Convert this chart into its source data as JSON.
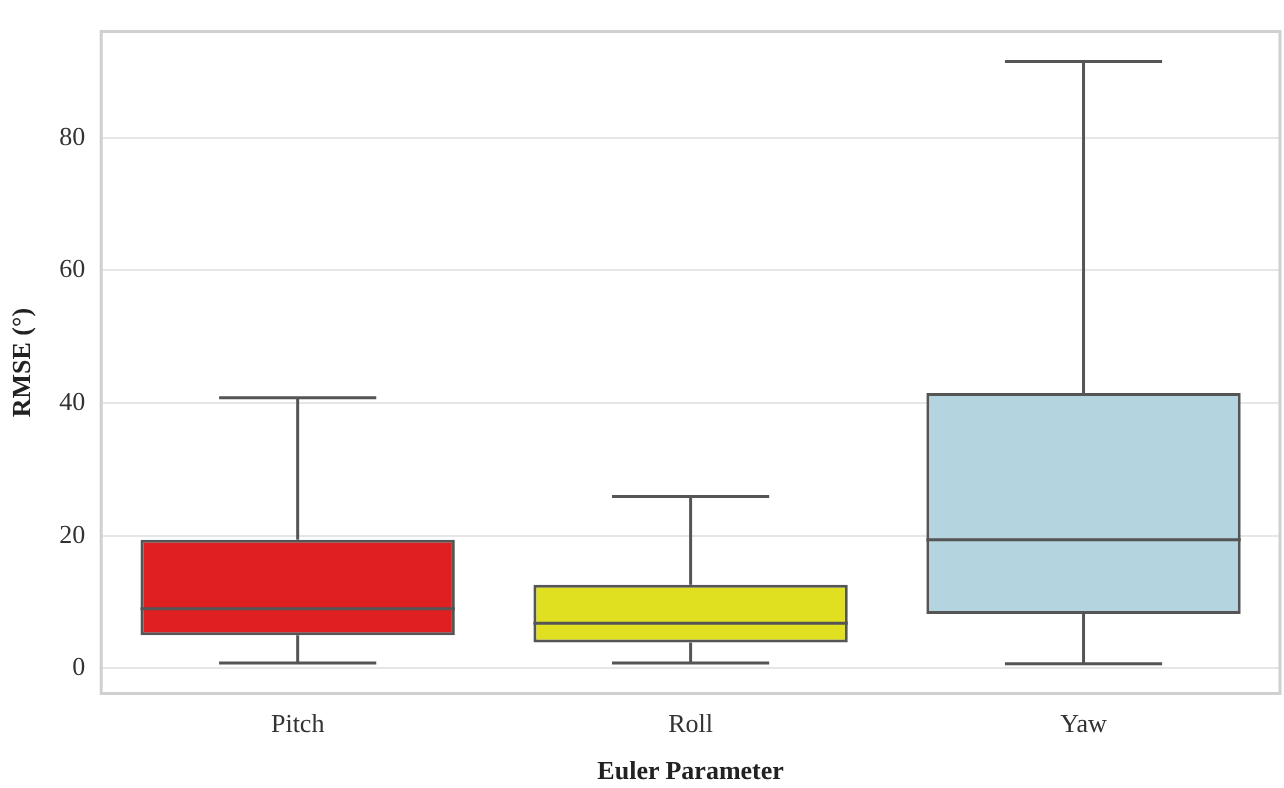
{
  "chart_data": {
    "type": "box",
    "xlabel": "Euler Parameter",
    "ylabel": "RMSE (°)",
    "categories": [
      "Pitch",
      "Roll",
      "Yaw"
    ],
    "colors": [
      "#e02020",
      "#e0e020",
      "#b4d4e0"
    ],
    "boxes": [
      {
        "low": 0.8,
        "q1": 5.0,
        "median": 9.0,
        "q3": 19.4,
        "high": 40.8
      },
      {
        "low": 0.8,
        "q1": 3.9,
        "median": 6.8,
        "q3": 12.6,
        "high": 25.9
      },
      {
        "low": 0.7,
        "q1": 8.2,
        "median": 19.4,
        "q3": 41.5,
        "high": 91.5
      }
    ],
    "ylim": [
      -3.8,
      96
    ],
    "yticks": [
      0,
      20,
      40,
      60,
      80
    ],
    "grid": "y",
    "legend": false
  }
}
